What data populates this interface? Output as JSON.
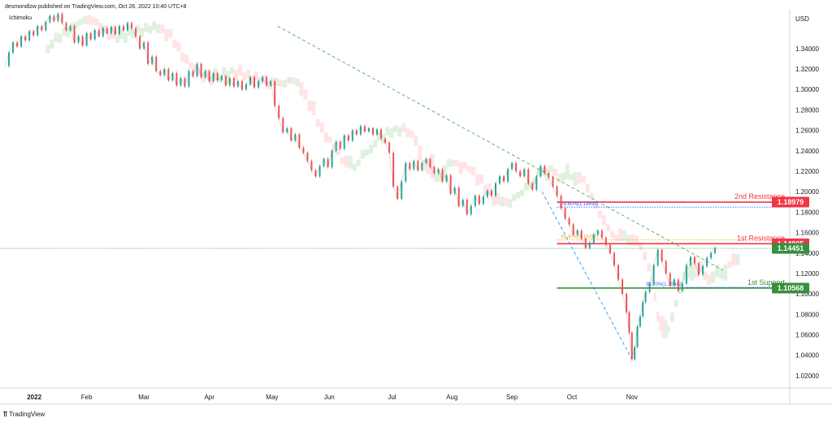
{
  "header": {
    "published": "desmondlzw published on TradingView.com, Oct 26, 2022 10:40 UTC+8"
  },
  "indicator": {
    "name": "Ichimoku"
  },
  "price_axis": {
    "currency": "USD"
  },
  "footer": {
    "brand": "TradingView",
    "logo_icon": "tradingview-logo-icon"
  },
  "chart_data": {
    "type": "line",
    "instrument_currency": "USD",
    "x_ticks": [
      "2022",
      "Feb",
      "Mar",
      "Apr",
      "May",
      "Jun",
      "Jul",
      "Aug",
      "Sep",
      "Oct",
      "Nov"
    ],
    "y_ticks": [
      "1.34000",
      "1.32000",
      "1.30000",
      "1.28000",
      "1.26000",
      "1.24000",
      "1.22000",
      "1.20000",
      "1.18000",
      "1.16000",
      "1.14000",
      "1.12000",
      "1.10000",
      "1.08000",
      "1.06000",
      "1.04000",
      "1.02000"
    ],
    "ylim": [
      1.008,
      1.378
    ],
    "series": [
      {
        "values": [
          [
            0,
            1.323
          ],
          [
            3,
            1.336
          ],
          [
            6,
            1.346
          ],
          [
            9,
            1.342
          ],
          [
            12,
            1.352
          ],
          [
            15,
            1.348
          ],
          [
            18,
            1.357
          ],
          [
            21,
            1.353
          ],
          [
            24,
            1.362
          ],
          [
            27,
            1.358
          ],
          [
            30,
            1.366
          ],
          [
            33,
            1.372
          ],
          [
            36,
            1.367
          ],
          [
            39,
            1.374
          ],
          [
            42,
            1.365
          ],
          [
            45,
            1.358
          ],
          [
            48,
            1.362
          ],
          [
            51,
            1.346
          ],
          [
            54,
            1.352
          ],
          [
            57,
            1.343
          ],
          [
            60,
            1.355
          ],
          [
            63,
            1.349
          ],
          [
            66,
            1.358
          ],
          [
            69,
            1.352
          ],
          [
            72,
            1.36
          ],
          [
            75,
            1.355
          ],
          [
            78,
            1.361
          ],
          [
            81,
            1.354
          ],
          [
            84,
            1.362
          ],
          [
            87,
            1.358
          ],
          [
            90,
            1.365
          ],
          [
            93,
            1.36
          ],
          [
            96,
            1.352
          ],
          [
            99,
            1.34
          ],
          [
            102,
            1.346
          ],
          [
            105,
            1.325
          ],
          [
            108,
            1.332
          ],
          [
            111,
            1.318
          ],
          [
            114,
            1.314
          ],
          [
            117,
            1.32
          ],
          [
            120,
            1.309
          ],
          [
            123,
            1.316
          ],
          [
            126,
            1.304
          ],
          [
            129,
            1.311
          ],
          [
            132,
            1.303
          ],
          [
            135,
            1.318
          ],
          [
            138,
            1.313
          ],
          [
            141,
            1.325
          ],
          [
            144,
            1.312
          ],
          [
            147,
            1.318
          ],
          [
            150,
            1.308
          ],
          [
            153,
            1.316
          ],
          [
            156,
            1.309
          ],
          [
            159,
            1.313
          ],
          [
            162,
            1.304
          ],
          [
            165,
            1.311
          ],
          [
            168,
            1.303
          ],
          [
            171,
            1.308
          ],
          [
            174,
            1.3
          ],
          [
            177,
            1.305
          ],
          [
            180,
            1.312
          ],
          [
            183,
            1.302
          ],
          [
            186,
            1.308
          ],
          [
            189,
            1.312
          ],
          [
            192,
            1.304
          ],
          [
            195,
            1.308
          ],
          [
            198,
            1.284
          ],
          [
            201,
            1.272
          ],
          [
            204,
            1.258
          ],
          [
            207,
            1.262
          ],
          [
            210,
            1.25
          ],
          [
            213,
            1.256
          ],
          [
            216,
            1.243
          ],
          [
            219,
            1.238
          ],
          [
            222,
            1.23
          ],
          [
            225,
            1.221
          ],
          [
            228,
            1.215
          ],
          [
            231,
            1.225
          ],
          [
            234,
            1.232
          ],
          [
            237,
            1.224
          ],
          [
            240,
            1.24
          ],
          [
            243,
            1.249
          ],
          [
            246,
            1.242
          ],
          [
            249,
            1.255
          ],
          [
            252,
            1.25
          ],
          [
            255,
            1.26
          ],
          [
            258,
            1.256
          ],
          [
            261,
            1.264
          ],
          [
            264,
            1.259
          ],
          [
            267,
            1.262
          ],
          [
            270,
            1.256
          ],
          [
            273,
            1.261
          ],
          [
            276,
            1.252
          ],
          [
            279,
            1.248
          ],
          [
            282,
            1.238
          ],
          [
            285,
            1.205
          ],
          [
            288,
            1.193
          ],
          [
            291,
            1.21
          ],
          [
            294,
            1.228
          ],
          [
            297,
            1.222
          ],
          [
            300,
            1.23
          ],
          [
            303,
            1.221
          ],
          [
            306,
            1.228
          ],
          [
            309,
            1.232
          ],
          [
            312,
            1.224
          ],
          [
            315,
            1.218
          ],
          [
            318,
            1.222
          ],
          [
            321,
            1.21
          ],
          [
            324,
            1.216
          ],
          [
            327,
            1.198
          ],
          [
            330,
            1.204
          ],
          [
            333,
            1.186
          ],
          [
            336,
            1.192
          ],
          [
            339,
            1.178
          ],
          [
            342,
            1.186
          ],
          [
            345,
            1.196
          ],
          [
            348,
            1.188
          ],
          [
            351,
            1.195
          ],
          [
            354,
            1.201
          ],
          [
            357,
            1.196
          ],
          [
            360,
            1.208
          ],
          [
            363,
            1.215
          ],
          [
            366,
            1.21
          ],
          [
            369,
            1.222
          ],
          [
            372,
            1.228
          ],
          [
            375,
            1.22
          ],
          [
            378,
            1.215
          ],
          [
            381,
            1.222
          ],
          [
            384,
            1.208
          ],
          [
            387,
            1.202
          ],
          [
            390,
            1.215
          ],
          [
            393,
            1.225
          ],
          [
            396,
            1.218
          ],
          [
            399,
            1.214
          ],
          [
            402,
            1.205
          ],
          [
            405,
            1.196
          ],
          [
            408,
            1.184
          ],
          [
            411,
            1.174
          ],
          [
            414,
            1.168
          ],
          [
            417,
            1.158
          ],
          [
            420,
            1.162
          ],
          [
            423,
            1.154
          ],
          [
            426,
            1.145
          ],
          [
            429,
            1.15
          ],
          [
            432,
            1.158
          ],
          [
            435,
            1.162
          ],
          [
            438,
            1.155
          ],
          [
            441,
            1.148
          ],
          [
            444,
            1.14
          ],
          [
            447,
            1.128
          ],
          [
            450,
            1.114
          ],
          [
            453,
            1.1
          ],
          [
            456,
            1.082
          ],
          [
            458,
            1.062
          ],
          [
            460,
            1.036
          ],
          [
            462,
            1.048
          ],
          [
            464,
            1.068
          ],
          [
            466,
            1.078
          ],
          [
            468,
            1.092
          ],
          [
            470,
            1.102
          ],
          [
            473,
            1.11
          ],
          [
            476,
            1.128
          ],
          [
            479,
            1.143
          ],
          [
            482,
            1.132
          ],
          [
            485,
            1.12
          ],
          [
            488,
            1.108
          ],
          [
            491,
            1.114
          ],
          [
            494,
            1.103
          ],
          [
            497,
            1.11
          ],
          [
            500,
            1.128
          ],
          [
            503,
            1.136
          ],
          [
            506,
            1.13
          ],
          [
            509,
            1.119
          ],
          [
            512,
            1.127
          ],
          [
            515,
            1.135
          ],
          [
            518,
            1.14
          ],
          [
            521,
            1.145
          ]
        ]
      }
    ],
    "trendline_1": {
      "points": [
        [
          200,
          1.362
        ],
        [
          527,
          1.123
        ]
      ],
      "style": "dashed",
      "color": "#4caf50"
    },
    "trendline_2": {
      "points": [
        [
          394,
          1.2
        ],
        [
          460,
          1.036
        ]
      ],
      "style": "dashed",
      "color": "#2196f3"
    },
    "levels": [
      {
        "label": "2nd Resistance",
        "value": 1.18979,
        "value_text": "1.18979",
        "color": "#f23645"
      },
      {
        "label": "1st Resistance",
        "value": 1.14905,
        "value_text": "1.14905",
        "color": "#f23645"
      },
      {
        "label": "",
        "value": 1.14451,
        "value_text": "1.14451",
        "color": "#388e3c"
      },
      {
        "label": "1st Support",
        "value": 1.10568,
        "value_text": "1.10568",
        "color": "#388e3c"
      }
    ],
    "fib_levels": [
      {
        "text": "78.60%(1.18493)",
        "value": 1.18493,
        "color": "#2962ff"
      },
      {
        "text": "61.80%(1.15292)",
        "value": 1.15292,
        "color": "#f9a825"
      },
      {
        "text": "38.20%(1.10642)",
        "value": 1.10642,
        "color": "#2962ff"
      }
    ],
    "grid": false,
    "legend": "none"
  }
}
